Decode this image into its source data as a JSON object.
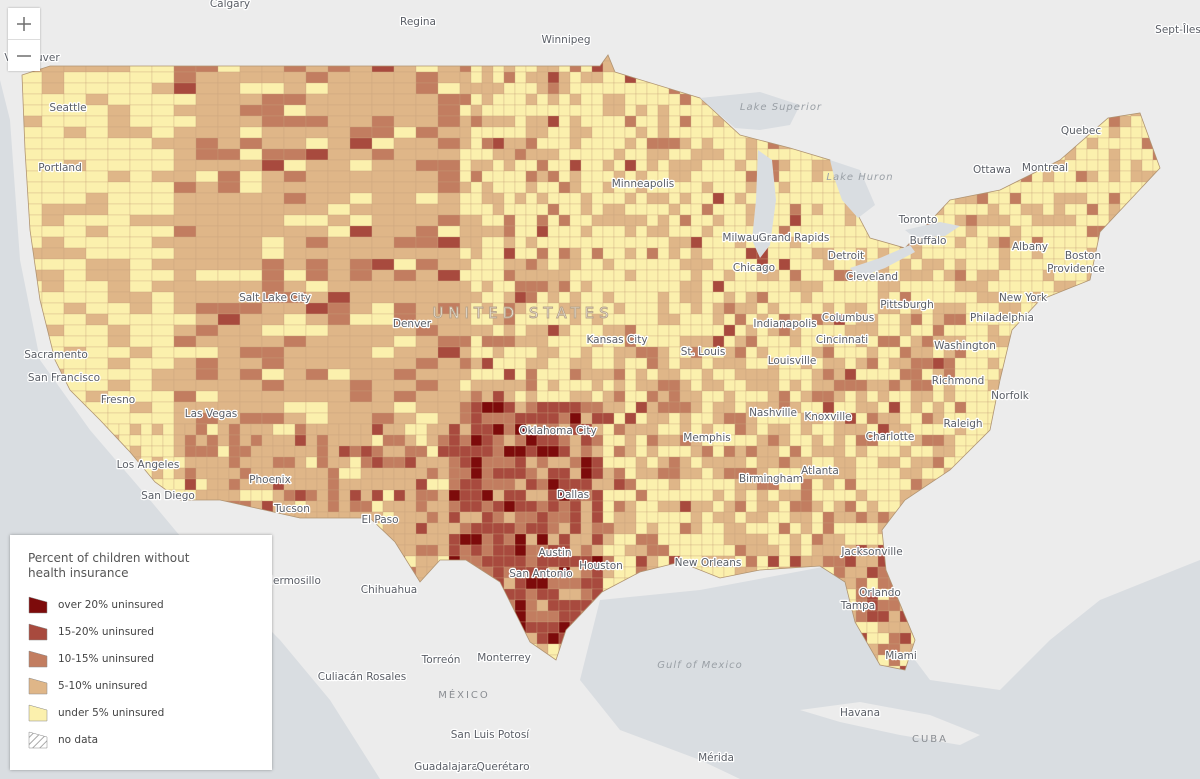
{
  "map": {
    "legend": {
      "title": "Percent of children without health insurance",
      "items": [
        {
          "label": "over 20% uninsured",
          "color": "#7d0b0b"
        },
        {
          "label": "15-20% uninsured",
          "color": "#a84a3e"
        },
        {
          "label": "10-15% uninsured",
          "color": "#c27d60"
        },
        {
          "label": "5-10% uninsured",
          "color": "#dfb688"
        },
        {
          "label": "under 5% uninsured",
          "color": "#fbf0ad"
        },
        {
          "label": "no data",
          "pattern": "hatch"
        }
      ]
    },
    "country_label": "UNITED STATES",
    "water_labels": [
      "Lake Superior",
      "Lake Huron",
      "Gulf of Mexico"
    ],
    "region_labels": [
      "MÉXICO",
      "CUBA"
    ],
    "places": [
      "Calgary",
      "Regina",
      "Winnipeg",
      "Sept-Îles",
      "Vancouver",
      "Seattle",
      "Portland",
      "Sacramento",
      "San Francisco",
      "Fresno",
      "Los Angeles",
      "San Diego",
      "Las Vegas",
      "Phoenix",
      "Tucson",
      "Salt Lake City",
      "Denver",
      "El Paso",
      "Hermosillo",
      "Chihuahua",
      "Culiacán Rosales",
      "Torreón",
      "Monterrey",
      "San Luis Potosí",
      "Guadalajara",
      "Querétaro",
      "Mérida",
      "Havana",
      "Minneapolis",
      "Milwaukee",
      "Grand Rapids",
      "Detroit",
      "Chicago",
      "Toronto",
      "Ottawa",
      "Montreal",
      "Quebec",
      "Buffalo",
      "Albany",
      "Boston",
      "Providence",
      "Cleveland",
      "Pittsburgh",
      "New York",
      "Philadelphia",
      "Columbus",
      "Indianapolis",
      "Cincinnati",
      "Kansas City",
      "St. Louis",
      "Louisville",
      "Washington",
      "Richmond",
      "Norfolk",
      "Nashville",
      "Knoxville",
      "Charlotte",
      "Raleigh",
      "Oklahoma City",
      "Memphis",
      "Atlanta",
      "Birmingham",
      "Dallas",
      "Austin",
      "San Antonio",
      "Houston",
      "New Orleans",
      "Jacksonville",
      "Orlando",
      "Tampa",
      "Miami"
    ]
  }
}
